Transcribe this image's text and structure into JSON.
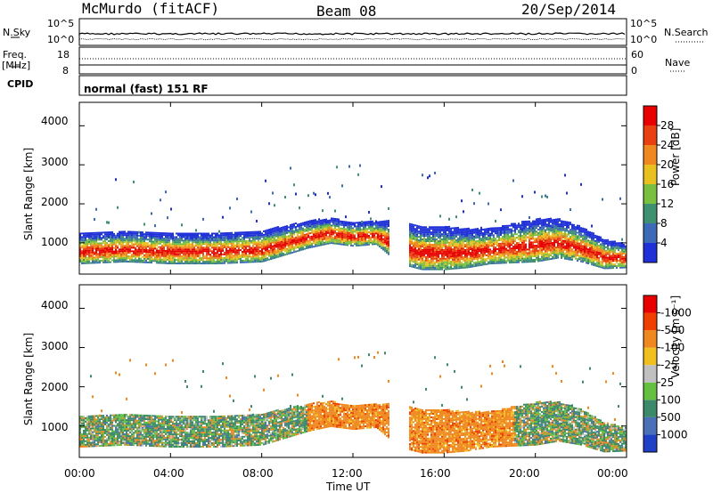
{
  "header": {
    "station": "McMurdo (fitACF)",
    "beam": "Beam 08",
    "date": "20/Sep/2014"
  },
  "strip_labels": {
    "nsky": "N.Sky",
    "nsky_top": "10^5",
    "nsky_bottom": "10^0",
    "nsearch": "N.Search",
    "nsearch_top": "10^5",
    "nsearch_bottom": "10^0",
    "freq": "Freq.",
    "freq_unit": "[MHz]",
    "freq_top": "18",
    "freq_bottom": "8",
    "nave": "Nave",
    "nave_top": "60",
    "nave_bottom": "0",
    "cpid": "CPID",
    "cpid_value": "normal (fast) 151 RF"
  },
  "chart_data": [
    {
      "type": "heatmap",
      "panel": "power",
      "ylabel": "Slant Range [km]",
      "xlabel": "Time UT",
      "x_ticks": [
        "00:00",
        "04:00",
        "08:00",
        "12:00",
        "16:00",
        "20:00",
        "00:00"
      ],
      "y_ticks": [
        1000,
        2000,
        3000,
        4000
      ],
      "ylim": [
        200,
        4600
      ],
      "xlim_hours": [
        0,
        24
      ],
      "colorbar_label": "Power [dB]",
      "colorbar_ticks": [
        "4",
        "8",
        "12",
        "16",
        "20",
        "24",
        "28"
      ],
      "colorbar_colors": [
        "#2030d8",
        "#3c6ab8",
        "#3f9070",
        "#7ac040",
        "#e8c020",
        "#f08820",
        "#e84010",
        "#e80000"
      ],
      "band_center_km": [
        [
          0,
          850
        ],
        [
          2,
          900
        ],
        [
          4,
          850
        ],
        [
          6,
          850
        ],
        [
          8,
          900
        ],
        [
          10,
          1200
        ],
        [
          11,
          1300
        ],
        [
          12,
          1200
        ],
        [
          13,
          1250
        ],
        [
          14,
          1000
        ],
        [
          15,
          850
        ],
        [
          17,
          850
        ],
        [
          18,
          900
        ],
        [
          20,
          1050
        ],
        [
          21,
          1100
        ],
        [
          22,
          950
        ],
        [
          23,
          700
        ],
        [
          24,
          650
        ]
      ],
      "band_halfwidth_km": [
        [
          0,
          400
        ],
        [
          2,
          400
        ],
        [
          4,
          400
        ],
        [
          6,
          400
        ],
        [
          8,
          400
        ],
        [
          10,
          350
        ],
        [
          12,
          300
        ],
        [
          13,
          300
        ],
        [
          14,
          550
        ],
        [
          16,
          550
        ],
        [
          18,
          450
        ],
        [
          20,
          550
        ],
        [
          22,
          450
        ],
        [
          24,
          300
        ]
      ],
      "gap_hours": [
        13.6,
        14.4
      ]
    },
    {
      "type": "heatmap",
      "panel": "velocity",
      "ylabel": "Slant Range [km]",
      "xlabel": "Time UT",
      "x_ticks": [
        "00:00",
        "04:00",
        "08:00",
        "12:00",
        "16:00",
        "20:00",
        "00:00"
      ],
      "y_ticks": [
        1000,
        2000,
        3000,
        4000
      ],
      "ylim": [
        200,
        4600
      ],
      "xlim_hours": [
        0,
        24
      ],
      "colorbar_label": "Velocity [m s⁻¹]",
      "colorbar_ticks": [
        "1000",
        "500",
        "100",
        "25",
        "-25",
        "-100",
        "-500",
        "-1000"
      ],
      "colorbar_colors": [
        "#2040c8",
        "#4a70b8",
        "#3c8a6a",
        "#66c040",
        "#c0c0c0",
        "#f0c020",
        "#f08820",
        "#f04000",
        "#e80000"
      ]
    }
  ]
}
